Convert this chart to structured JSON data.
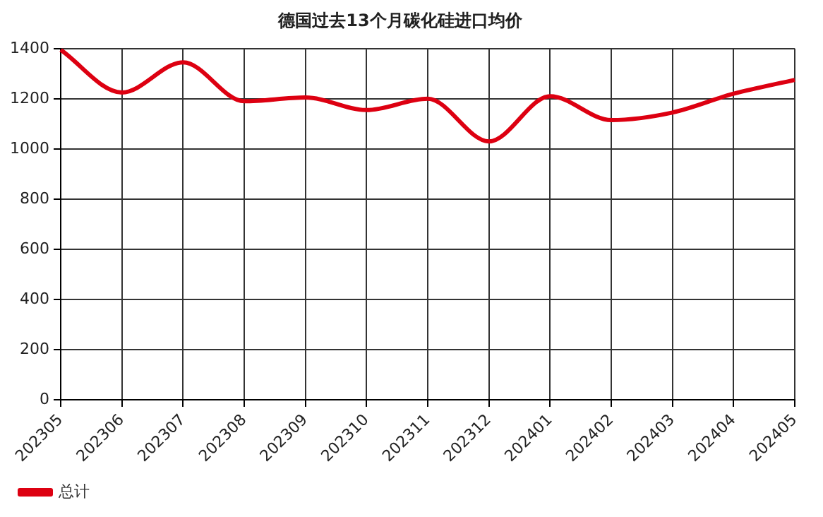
{
  "chart_data": {
    "type": "line",
    "title": "德国过去13个月碳化硅进口均价",
    "categories": [
      "202305",
      "202306",
      "202307",
      "202308",
      "202309",
      "202310",
      "202311",
      "202312",
      "202401",
      "202402",
      "202403",
      "202404",
      "202405"
    ],
    "series": [
      {
        "name": "总计",
        "color": "#dd0011",
        "values": [
          1395,
          1225,
          1345,
          1190,
          1205,
          1155,
          1200,
          1030,
          1210,
          1115,
          1145,
          1220,
          1275
        ]
      }
    ],
    "ylim": [
      0,
      1400
    ],
    "yticks": [
      0,
      200,
      400,
      600,
      800,
      1000,
      1200,
      1400
    ],
    "grid": true,
    "legend": "bottom left",
    "marker": "none",
    "line_style": "solid"
  }
}
